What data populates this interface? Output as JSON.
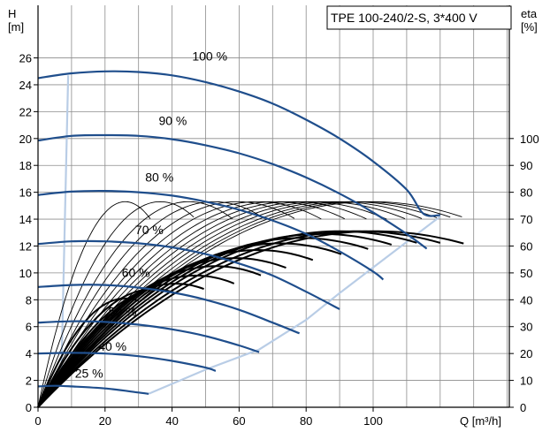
{
  "chart_data": {
    "type": "line",
    "title": "TPE 100-240/2-S, 3*400 V",
    "xlabel": "Q [m³/h]",
    "ylabel_unit_line1": "H",
    "ylabel_unit_line2": "[m]",
    "y2label_line1": "eta",
    "y2label_line2": "[%]",
    "xlim": [
      0,
      140
    ],
    "ylim": [
      0,
      28
    ],
    "y2lim": [
      0,
      140
    ],
    "x_ticks": [
      0,
      20,
      40,
      60,
      80,
      100
    ],
    "y_ticks": [
      0,
      2,
      4,
      6,
      8,
      10,
      12,
      14,
      16,
      18,
      20,
      22,
      24,
      26
    ],
    "y2_ticks": [
      0,
      10,
      20,
      30,
      40,
      50,
      60,
      70,
      80,
      90,
      100
    ],
    "grid": true,
    "colors": {
      "head_curve": "#1f4e8c",
      "envelope": "#b9cde6",
      "efficiency": "#000000",
      "grid": "#8c8c8c"
    },
    "head_curves": [
      {
        "label": "100 %",
        "label_pos": [
          46,
          25.8
        ],
        "points": [
          [
            0,
            24.5
          ],
          [
            10,
            24.85
          ],
          [
            20,
            25.0
          ],
          [
            30,
            24.95
          ],
          [
            40,
            24.7
          ],
          [
            50,
            24.2
          ],
          [
            60,
            23.5
          ],
          [
            70,
            22.6
          ],
          [
            80,
            21.4
          ],
          [
            90,
            20.0
          ],
          [
            100,
            18.3
          ],
          [
            110,
            16.2
          ],
          [
            115,
            14.4
          ],
          [
            120,
            14.3
          ]
        ]
      },
      {
        "label": "90 %",
        "label_pos": [
          36,
          21.0
        ],
        "points": [
          [
            0,
            19.85
          ],
          [
            10,
            20.2
          ],
          [
            20,
            20.25
          ],
          [
            30,
            20.2
          ],
          [
            40,
            19.95
          ],
          [
            50,
            19.5
          ],
          [
            60,
            18.9
          ],
          [
            70,
            18.1
          ],
          [
            80,
            17.1
          ],
          [
            90,
            15.9
          ],
          [
            100,
            14.5
          ],
          [
            110,
            12.9
          ],
          [
            116,
            11.8
          ]
        ]
      },
      {
        "label": "80 %",
        "label_pos": [
          32,
          16.8
        ],
        "points": [
          [
            0,
            15.8
          ],
          [
            10,
            16.05
          ],
          [
            20,
            16.1
          ],
          [
            30,
            16.0
          ],
          [
            40,
            15.75
          ],
          [
            50,
            15.3
          ],
          [
            60,
            14.7
          ],
          [
            70,
            13.9
          ],
          [
            80,
            12.9
          ],
          [
            90,
            11.6
          ],
          [
            100,
            10.1
          ],
          [
            103,
            9.5
          ]
        ]
      },
      {
        "label": "70 %",
        "label_pos": [
          29,
          12.9
        ],
        "points": [
          [
            0,
            12.15
          ],
          [
            10,
            12.35
          ],
          [
            20,
            12.35
          ],
          [
            30,
            12.2
          ],
          [
            40,
            11.9
          ],
          [
            50,
            11.4
          ],
          [
            60,
            10.7
          ],
          [
            70,
            9.8
          ],
          [
            80,
            8.6
          ],
          [
            90,
            7.3
          ]
        ]
      },
      {
        "label": "60 %",
        "label_pos": [
          25,
          9.7
        ],
        "points": [
          [
            0,
            8.95
          ],
          [
            10,
            9.1
          ],
          [
            20,
            9.1
          ],
          [
            30,
            8.9
          ],
          [
            40,
            8.55
          ],
          [
            50,
            8.0
          ],
          [
            60,
            7.25
          ],
          [
            70,
            6.3
          ],
          [
            78,
            5.5
          ]
        ]
      },
      {
        "label": "50 %",
        "label_pos": [
          21,
          6.8
        ],
        "points": [
          [
            0,
            6.3
          ],
          [
            10,
            6.4
          ],
          [
            20,
            6.35
          ],
          [
            30,
            6.15
          ],
          [
            40,
            5.8
          ],
          [
            50,
            5.3
          ],
          [
            60,
            4.6
          ],
          [
            66,
            4.1
          ]
        ]
      },
      {
        "label": "40 %",
        "label_pos": [
          18,
          4.2
        ],
        "points": [
          [
            0,
            4.0
          ],
          [
            10,
            4.05
          ],
          [
            20,
            4.0
          ],
          [
            30,
            3.8
          ],
          [
            40,
            3.45
          ],
          [
            50,
            2.95
          ],
          [
            53,
            2.7
          ]
        ]
      },
      {
        "label": "25 %",
        "label_pos": [
          11,
          2.2
        ],
        "points": [
          [
            0,
            1.55
          ],
          [
            5,
            1.6
          ],
          [
            10,
            1.55
          ],
          [
            20,
            1.4
          ],
          [
            30,
            1.1
          ],
          [
            33,
            1.0
          ]
        ]
      }
    ],
    "envelope_left": [
      [
        0,
        0
      ],
      [
        7,
        2.8
      ],
      [
        9,
        24.7
      ]
    ],
    "envelope_right": [
      [
        33,
        1.0
      ],
      [
        50,
        2.8
      ],
      [
        66,
        4.3
      ],
      [
        80,
        6.5
      ],
      [
        90,
        8.5
      ],
      [
        100,
        10.4
      ],
      [
        110,
        12.3
      ],
      [
        120,
        14.2
      ]
    ],
    "efficiency_groups": [
      {
        "stroke": 0.9,
        "curves": [
          {
            "peak_q": 26.0,
            "peak_eta": 76.5,
            "end_q": 33.5
          },
          {
            "peak_q": 36.5,
            "peak_eta": 76.5,
            "end_q": 46.5
          },
          {
            "peak_q": 45.0,
            "peak_eta": 76.5,
            "end_q": 58.0
          },
          {
            "peak_q": 52.5,
            "peak_eta": 76.5,
            "end_q": 67.5
          },
          {
            "peak_q": 59.5,
            "peak_eta": 76.5,
            "end_q": 76.5
          },
          {
            "peak_q": 65.5,
            "peak_eta": 76.5,
            "end_q": 84.5
          },
          {
            "peak_q": 71.0,
            "peak_eta": 76.5,
            "end_q": 91.5
          },
          {
            "peak_q": 76.0,
            "peak_eta": 76.5,
            "end_q": 98.0
          },
          {
            "peak_q": 80.5,
            "peak_eta": 76.5,
            "end_q": 104.0
          },
          {
            "peak_q": 85.0,
            "peak_eta": 76.5,
            "end_q": 109.5
          },
          {
            "peak_q": 89.0,
            "peak_eta": 76.5,
            "end_q": 114.5
          },
          {
            "peak_q": 93.0,
            "peak_eta": 76.5,
            "end_q": 119.0
          },
          {
            "peak_q": 96.5,
            "peak_eta": 76.5,
            "end_q": 123.0
          },
          {
            "peak_q": 99.5,
            "peak_eta": 76.5,
            "end_q": 126.5
          }
        ]
      },
      {
        "stroke": 2.0,
        "curves": [
          {
            "peak_q": 26.0,
            "peak_eta": 40.5,
            "end_q": 30.0
          },
          {
            "peak_q": 34.5,
            "peak_eta": 44.0,
            "end_q": 41.0
          },
          {
            "peak_q": 41.0,
            "peak_eta": 46.0,
            "end_q": 49.5
          },
          {
            "peak_q": 47.0,
            "peak_eta": 49.0,
            "end_q": 58.5
          },
          {
            "peak_q": 53.0,
            "peak_eta": 52.5,
            "end_q": 66.5
          },
          {
            "peak_q": 59.0,
            "peak_eta": 55.5,
            "end_q": 74.0
          },
          {
            "peak_q": 65.5,
            "peak_eta": 58.5,
            "end_q": 82.0
          },
          {
            "peak_q": 72.0,
            "peak_eta": 61.0,
            "end_q": 90.5
          },
          {
            "peak_q": 78.5,
            "peak_eta": 63.0,
            "end_q": 98.5
          },
          {
            "peak_q": 84.5,
            "peak_eta": 64.5,
            "end_q": 105.5
          },
          {
            "peak_q": 90.0,
            "peak_eta": 65.5,
            "end_q": 113.0
          },
          {
            "peak_q": 95.5,
            "peak_eta": 65.5,
            "end_q": 120.0
          },
          {
            "peak_q": 100.5,
            "peak_eta": 65.5,
            "end_q": 127.0
          }
        ]
      }
    ]
  }
}
